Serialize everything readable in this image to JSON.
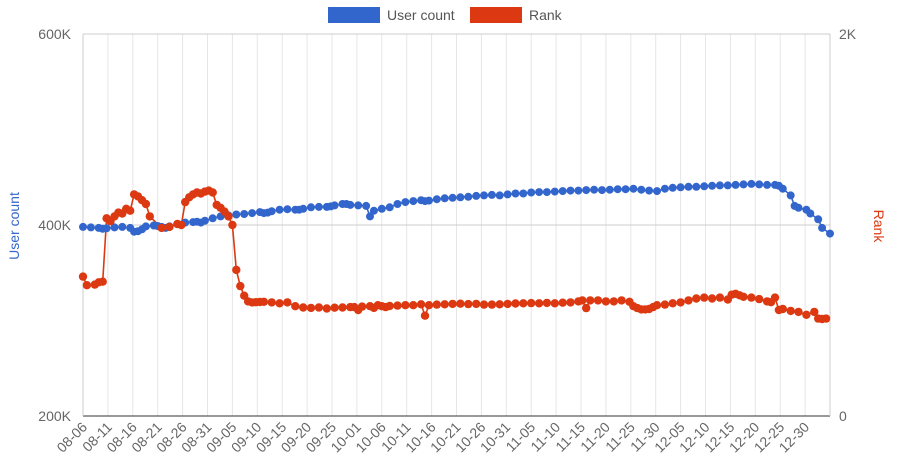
{
  "chart_data": {
    "type": "line",
    "legend_position": "top-center",
    "grid": true,
    "x_tick_labels": [
      "08-06",
      "08-11",
      "08-16",
      "08-21",
      "08-26",
      "08-31",
      "09-05",
      "09-10",
      "09-15",
      "09-20",
      "09-25",
      "10-01",
      "10-06",
      "10-11",
      "10-16",
      "10-21",
      "10-26",
      "10-31",
      "11-05",
      "11-10",
      "11-15",
      "11-20",
      "11-25",
      "11-30",
      "12-05",
      "12-10",
      "12-15",
      "12-20",
      "12-25",
      "12-30"
    ],
    "y_left": {
      "label": "User count",
      "min": 200000,
      "max": 600000,
      "ticks": [
        200000,
        400000,
        600000
      ],
      "tick_labels": [
        "200K",
        "400K",
        "600K"
      ]
    },
    "y_right": {
      "label": "Rank",
      "min": 0,
      "max": 2000,
      "ticks": [
        0,
        2000
      ],
      "tick_labels": [
        "0",
        "2K"
      ]
    },
    "series": [
      {
        "name": "User count",
        "axis": "left",
        "color": "#3366cc",
        "values": [
          [
            0,
            398000
          ],
          [
            2,
            397500
          ],
          [
            4,
            397000
          ],
          [
            5,
            396000
          ],
          [
            6,
            396500
          ],
          [
            8,
            397500
          ],
          [
            10,
            398000
          ],
          [
            12,
            397000
          ],
          [
            13,
            393000
          ],
          [
            14,
            393500
          ],
          [
            15,
            395500
          ],
          [
            16,
            398500
          ],
          [
            18,
            399500
          ],
          [
            19,
            399000
          ],
          [
            20,
            398000
          ],
          [
            21,
            397000
          ],
          [
            22,
            398500
          ],
          [
            24,
            401000
          ],
          [
            26,
            402500
          ],
          [
            28,
            403000
          ],
          [
            29,
            403500
          ],
          [
            30,
            402500
          ],
          [
            31,
            404500
          ],
          [
            33,
            407000
          ],
          [
            35,
            409000
          ],
          [
            37,
            410000
          ],
          [
            39,
            411000
          ],
          [
            41,
            411500
          ],
          [
            43,
            412500
          ],
          [
            45,
            413500
          ],
          [
            46,
            412500
          ],
          [
            47,
            413000
          ],
          [
            48,
            414500
          ],
          [
            50,
            416000
          ],
          [
            52,
            416500
          ],
          [
            54,
            416000
          ],
          [
            55,
            416000
          ],
          [
            56,
            417000
          ],
          [
            58,
            418500
          ],
          [
            60,
            419000
          ],
          [
            62,
            419000
          ],
          [
            63,
            419500
          ],
          [
            64,
            420500
          ],
          [
            66,
            422000
          ],
          [
            67,
            422000
          ],
          [
            68,
            421000
          ],
          [
            70,
            420500
          ],
          [
            72,
            420000
          ],
          [
            73,
            409000
          ],
          [
            74,
            415000
          ],
          [
            76,
            417000
          ],
          [
            78,
            418500
          ],
          [
            80,
            422000
          ],
          [
            82,
            424000
          ],
          [
            84,
            425000
          ],
          [
            86,
            426000
          ],
          [
            87,
            425000
          ],
          [
            88,
            425500
          ],
          [
            90,
            427000
          ],
          [
            92,
            428000
          ],
          [
            94,
            428500
          ],
          [
            96,
            429000
          ],
          [
            98,
            429500
          ],
          [
            100,
            430500
          ],
          [
            102,
            431000
          ],
          [
            104,
            431500
          ],
          [
            106,
            431000
          ],
          [
            108,
            432000
          ],
          [
            110,
            433000
          ],
          [
            112,
            433000
          ],
          [
            114,
            434000
          ],
          [
            116,
            434500
          ],
          [
            118,
            434500
          ],
          [
            120,
            435000
          ],
          [
            122,
            435500
          ],
          [
            124,
            436000
          ],
          [
            126,
            436000
          ],
          [
            128,
            436500
          ],
          [
            130,
            437000
          ],
          [
            132,
            436500
          ],
          [
            134,
            437000
          ],
          [
            136,
            437500
          ],
          [
            138,
            437500
          ],
          [
            140,
            438000
          ],
          [
            142,
            437000
          ],
          [
            144,
            436000
          ],
          [
            146,
            435500
          ],
          [
            148,
            438000
          ],
          [
            150,
            439000
          ],
          [
            152,
            439500
          ],
          [
            154,
            440000
          ],
          [
            156,
            440000
          ],
          [
            158,
            440500
          ],
          [
            160,
            441000
          ],
          [
            162,
            441500
          ],
          [
            164,
            441500
          ],
          [
            166,
            442000
          ],
          [
            168,
            442500
          ],
          [
            170,
            443000
          ],
          [
            172,
            442500
          ],
          [
            174,
            442000
          ],
          [
            176,
            442000
          ],
          [
            177,
            441000
          ],
          [
            178,
            438000
          ],
          [
            180,
            431000
          ],
          [
            181,
            420000
          ],
          [
            182,
            418000
          ],
          [
            184,
            416000
          ],
          [
            185,
            412000
          ],
          [
            187,
            406000
          ],
          [
            188,
            397000
          ],
          [
            190,
            391000
          ]
        ]
      },
      {
        "name": "Rank",
        "axis": "right",
        "color": "#dc3912",
        "values": [
          [
            0,
            730
          ],
          [
            1,
            685
          ],
          [
            3,
            688
          ],
          [
            4,
            700
          ],
          [
            5,
            703
          ],
          [
            6,
            1035
          ],
          [
            7,
            1020
          ],
          [
            8,
            1045
          ],
          [
            9,
            1065
          ],
          [
            10,
            1060
          ],
          [
            11,
            1085
          ],
          [
            12,
            1075
          ],
          [
            13,
            1160
          ],
          [
            14,
            1150
          ],
          [
            15,
            1130
          ],
          [
            16,
            1110
          ],
          [
            17,
            1045
          ],
          [
            20,
            985
          ],
          [
            22,
            990
          ],
          [
            24,
            1005
          ],
          [
            25,
            1000
          ],
          [
            26,
            1120
          ],
          [
            27,
            1145
          ],
          [
            28,
            1160
          ],
          [
            29,
            1170
          ],
          [
            30,
            1165
          ],
          [
            31,
            1175
          ],
          [
            32,
            1180
          ],
          [
            33,
            1170
          ],
          [
            34,
            1105
          ],
          [
            35,
            1090
          ],
          [
            36,
            1070
          ],
          [
            37,
            1045
          ],
          [
            38,
            1000
          ],
          [
            39,
            765
          ],
          [
            40,
            680
          ],
          [
            41,
            630
          ],
          [
            42,
            600
          ],
          [
            43,
            595
          ],
          [
            44,
            596
          ],
          [
            45,
            597
          ],
          [
            46,
            598
          ],
          [
            48,
            595
          ],
          [
            50,
            590
          ],
          [
            52,
            595
          ],
          [
            54,
            575
          ],
          [
            56,
            568
          ],
          [
            58,
            566
          ],
          [
            60,
            568
          ],
          [
            62,
            563
          ],
          [
            64,
            567
          ],
          [
            66,
            568
          ],
          [
            68,
            570
          ],
          [
            69,
            570
          ],
          [
            70,
            555
          ],
          [
            71,
            573
          ],
          [
            73,
            575
          ],
          [
            74,
            566
          ],
          [
            75,
            580
          ],
          [
            76,
            575
          ],
          [
            77,
            570
          ],
          [
            78,
            576
          ],
          [
            80,
            578
          ],
          [
            82,
            580
          ],
          [
            84,
            580
          ],
          [
            86,
            585
          ],
          [
            87,
            525
          ],
          [
            88,
            580
          ],
          [
            90,
            583
          ],
          [
            92,
            585
          ],
          [
            94,
            587
          ],
          [
            96,
            588
          ],
          [
            98,
            586
          ],
          [
            100,
            587
          ],
          [
            102,
            583
          ],
          [
            104,
            583
          ],
          [
            106,
            585
          ],
          [
            108,
            587
          ],
          [
            110,
            589
          ],
          [
            112,
            590
          ],
          [
            114,
            591
          ],
          [
            116,
            590
          ],
          [
            118,
            592
          ],
          [
            120,
            590
          ],
          [
            122,
            593
          ],
          [
            124,
            595
          ],
          [
            126,
            600
          ],
          [
            127,
            605
          ],
          [
            128,
            565
          ],
          [
            129,
            605
          ],
          [
            131,
            605
          ],
          [
            133,
            600
          ],
          [
            135,
            600
          ],
          [
            137,
            605
          ],
          [
            139,
            598
          ],
          [
            140,
            575
          ],
          [
            141,
            565
          ],
          [
            142,
            558
          ],
          [
            143,
            558
          ],
          [
            144,
            560
          ],
          [
            145,
            570
          ],
          [
            146,
            580
          ],
          [
            148,
            583
          ],
          [
            150,
            590
          ],
          [
            152,
            595
          ],
          [
            154,
            605
          ],
          [
            156,
            615
          ],
          [
            158,
            620
          ],
          [
            160,
            615
          ],
          [
            162,
            620
          ],
          [
            164,
            610
          ],
          [
            165,
            635
          ],
          [
            166,
            640
          ],
          [
            167,
            632
          ],
          [
            168,
            624
          ],
          [
            170,
            620
          ],
          [
            172,
            612
          ],
          [
            174,
            600
          ],
          [
            175,
            596
          ],
          [
            176,
            620
          ],
          [
            177,
            555
          ],
          [
            178,
            560
          ],
          [
            180,
            550
          ],
          [
            182,
            545
          ],
          [
            184,
            530
          ],
          [
            186,
            545
          ],
          [
            187,
            510
          ],
          [
            188,
            508
          ],
          [
            189,
            510
          ]
        ]
      }
    ]
  }
}
